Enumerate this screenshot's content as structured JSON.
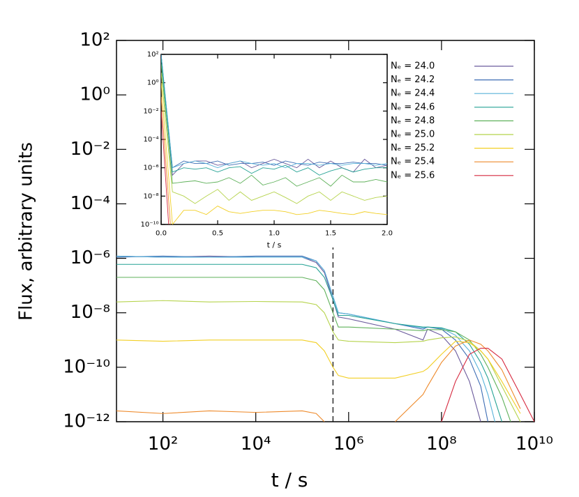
{
  "chart_data": [
    {
      "type": "line",
      "xlabel": "t / s",
      "ylabel": "Flux, arbitrary units",
      "xscale": "log",
      "yscale": "log",
      "legend": "upper-right",
      "xlim": [
        10,
        10000000000
      ],
      "ylim": [
        1e-12,
        100
      ],
      "xticks": [
        {
          "value": 100,
          "label": "10²"
        },
        {
          "value": 10000,
          "label": "10⁴"
        },
        {
          "value": 1000000,
          "label": "10⁶"
        },
        {
          "value": 100000000,
          "label": "10⁸"
        },
        {
          "value": 10000000000,
          "label": "10¹⁰"
        }
      ],
      "yticks": [
        {
          "value": 100,
          "label": "10²"
        },
        {
          "value": 1,
          "label": "10⁰"
        },
        {
          "value": 0.01,
          "label": "10⁻²"
        },
        {
          "value": 0.0001,
          "label": "10⁻⁴"
        },
        {
          "value": 1e-06,
          "label": "10⁻⁶"
        },
        {
          "value": 1e-08,
          "label": "10⁻⁸"
        },
        {
          "value": 1e-10,
          "label": "10⁻¹⁰"
        },
        {
          "value": 1e-12,
          "label": "10⁻¹²"
        }
      ],
      "marker_x": 460000,
      "x": [
        10,
        100,
        1000,
        10000,
        100000,
        200000,
        300000,
        460000,
        600000,
        1000000,
        10000000,
        40000000,
        50000000,
        100000000,
        200000000,
        400000000,
        700000000,
        1000000000,
        2000000000,
        5000000000,
        10000000000
      ],
      "series": [
        {
          "name": "Nₑ = 24.0",
          "color": "#6a5a9c",
          "values": [
            1.2e-06,
            1.1e-06,
            1.2e-06,
            1.1e-06,
            1.1e-06,
            7e-07,
            3e-07,
            3e-08,
            7e-09,
            6e-09,
            2.5e-09,
            1e-09,
            2.5e-09,
            1.5e-09,
            4e-10,
            3e-11,
            1e-12,
            null,
            null,
            null,
            null
          ]
        },
        {
          "name": "Nₑ = 24.2",
          "color": "#3d6db4",
          "values": [
            1.1e-06,
            1.2e-06,
            1.1e-06,
            1.2e-06,
            1.2e-06,
            8e-07,
            3.5e-07,
            4e-08,
            1e-08,
            9e-09,
            4e-09,
            2.5e-09,
            3e-09,
            2.5e-09,
            1e-09,
            2e-10,
            2e-11,
            1e-12,
            null,
            null,
            null
          ]
        },
        {
          "name": "Nₑ = 24.4",
          "color": "#58b2d9",
          "values": [
            1.2e-06,
            1.1e-06,
            1.1e-06,
            1.1e-06,
            1.1e-06,
            8e-07,
            3.5e-07,
            4e-08,
            1e-08,
            9e-09,
            4e-09,
            2.8e-09,
            3e-09,
            2.7e-09,
            1.5e-09,
            4e-10,
            6e-11,
            1e-11,
            1e-13,
            null,
            null
          ]
        },
        {
          "name": "Nₑ = 24.6",
          "color": "#24a294",
          "values": [
            6e-07,
            6e-07,
            6e-07,
            6e-07,
            6e-07,
            4.5e-07,
            2e-07,
            3e-08,
            8e-09,
            8e-09,
            4e-09,
            3e-09,
            3e-09,
            2.8e-09,
            2e-09,
            7e-10,
            1.5e-10,
            4e-11,
            1e-12,
            null,
            null
          ]
        },
        {
          "name": "Nₑ = 24.8",
          "color": "#5fb15a",
          "values": [
            2e-07,
            2e-07,
            2e-07,
            2e-07,
            2e-07,
            1.5e-07,
            7e-08,
            1e-08,
            3e-09,
            3e-09,
            2.5e-09,
            2.2e-09,
            2.4e-09,
            2.4e-09,
            2e-09,
            1e-09,
            3e-10,
            1e-10,
            8e-12,
            1e-13,
            null
          ]
        },
        {
          "name": "Nₑ = 25.0",
          "color": "#b5d34b",
          "values": [
            2.5e-08,
            2.8e-08,
            2.5e-08,
            2.6e-08,
            2.5e-08,
            2e-08,
            1e-08,
            2e-09,
            1e-09,
            9e-10,
            8e-10,
            9e-10,
            1e-09,
            1.2e-09,
            1.3e-09,
            9e-10,
            4e-10,
            2e-10,
            2e-11,
            1e-12,
            null
          ]
        },
        {
          "name": "Nₑ = 25.2",
          "color": "#f2cf24",
          "values": [
            1e-09,
            9e-10,
            1e-09,
            1e-09,
            1e-09,
            8e-10,
            4e-10,
            1e-10,
            5e-11,
            4e-11,
            4e-11,
            7e-11,
            9e-11,
            3e-10,
            9e-10,
            8e-10,
            4e-10,
            2e-10,
            3e-11,
            2e-12,
            null
          ]
        },
        {
          "name": "Nₑ = 25.4",
          "color": "#ee8a2b",
          "values": [
            2.5e-12,
            2e-12,
            2.5e-12,
            2.2e-12,
            2.5e-12,
            2e-12,
            1e-12,
            null,
            null,
            null,
            1e-12,
            1e-11,
            2e-11,
            1.5e-10,
            6e-10,
            1e-09,
            7e-10,
            4e-10,
            8e-11,
            3e-12,
            null
          ]
        },
        {
          "name": "Nₑ = 25.6",
          "color": "#d6283e",
          "values": [
            null,
            null,
            null,
            null,
            null,
            null,
            null,
            null,
            null,
            null,
            null,
            null,
            null,
            1e-12,
            3e-11,
            3e-10,
            5e-10,
            5e-10,
            2e-10,
            1e-11,
            1e-12
          ]
        }
      ]
    },
    {
      "type": "line",
      "xlabel": "t / s",
      "xscale": "linear",
      "yscale": "log",
      "xlim": [
        0,
        2
      ],
      "ylim": [
        1e-10,
        100
      ],
      "xticks": [
        {
          "value": 0,
          "label": "0.0"
        },
        0.5,
        {
          "value": 1,
          "label": "1.0"
        },
        1.5,
        {
          "value": 2,
          "label": "2.0"
        }
      ],
      "yticks": [
        {
          "value": 100,
          "label": "10²"
        },
        {
          "value": 1,
          "label": "10⁰"
        },
        {
          "value": 0.01,
          "label": "10⁻²"
        },
        {
          "value": 0.0001,
          "label": "10⁻⁴"
        },
        {
          "value": 1e-06,
          "label": "10⁻⁶"
        },
        {
          "value": 1e-08,
          "label": "10⁻⁸"
        },
        {
          "value": 1e-10,
          "label": "10⁻¹⁰"
        }
      ],
      "x": [
        0,
        0.1,
        0.2,
        0.3,
        0.4,
        0.5,
        0.6,
        0.7,
        0.8,
        0.9,
        1,
        1.1,
        1.2,
        1.3,
        1.4,
        1.5,
        1.6,
        1.7,
        1.8,
        1.9,
        2
      ],
      "series": [
        {
          "color": "#6a5a9c",
          "values": [
            100,
            3e-07,
            2e-06,
            3e-06,
            3e-06,
            1.5e-06,
            2e-06,
            3e-06,
            1e-06,
            2e-06,
            4e-06,
            2e-06,
            1e-06,
            4e-06,
            1e-06,
            3e-06,
            1e-06,
            5e-07,
            4e-06,
            1e-06,
            1.5e-06
          ]
        },
        {
          "color": "#3d6db4",
          "values": [
            100,
            1e-06,
            3e-06,
            2e-06,
            2e-06,
            3e-06,
            1.5e-06,
            2e-06,
            2e-06,
            2.5e-06,
            1.5e-06,
            3e-06,
            2e-06,
            1.5e-06,
            2.5e-06,
            2e-06,
            2e-06,
            2.5e-06,
            2e-06,
            2e-06,
            1.5e-06
          ]
        },
        {
          "color": "#58b2d9",
          "values": [
            100,
            1e-06,
            2e-06,
            3e-06,
            2e-06,
            1e-06,
            2e-06,
            3e-06,
            2e-06,
            1.5e-06,
            2e-06,
            1e-06,
            2e-06,
            2e-06,
            1.5e-06,
            2e-06,
            1.5e-06,
            2e-06,
            2e-06,
            1.5e-06,
            2e-06
          ]
        },
        {
          "color": "#24a294",
          "values": [
            50,
            5e-07,
            1e-06,
            8e-07,
            1e-06,
            5e-07,
            1e-06,
            1.2e-06,
            4e-07,
            1e-06,
            8e-07,
            1.5e-06,
            5e-07,
            1e-06,
            3e-07,
            6e-07,
            1e-06,
            5e-07,
            8e-07,
            1e-06,
            1e-06
          ]
        },
        {
          "color": "#5fb15a",
          "values": [
            20,
            8e-08,
            1e-07,
            1.2e-07,
            8e-08,
            1e-07,
            2e-07,
            8e-08,
            3e-07,
            6e-08,
            1e-07,
            2e-07,
            5e-08,
            1e-07,
            2e-07,
            5e-08,
            3e-07,
            1e-07,
            1e-07,
            1.5e-07,
            1e-07
          ]
        },
        {
          "color": "#b5d34b",
          "values": [
            5,
            2e-08,
            1e-08,
            3e-09,
            1e-08,
            3e-08,
            5e-09,
            2e-08,
            5e-09,
            1e-08,
            2e-08,
            8e-09,
            3e-09,
            1e-08,
            2e-08,
            5e-09,
            2e-08,
            1e-08,
            5e-09,
            8e-09,
            1e-08
          ]
        },
        {
          "color": "#f2cf24",
          "values": [
            1,
            1e-10,
            1e-09,
            1e-09,
            5e-10,
            2e-09,
            8e-10,
            6e-10,
            8e-10,
            1e-09,
            1e-09,
            8e-10,
            5e-10,
            6e-10,
            1e-09,
            8e-10,
            6e-10,
            5e-10,
            8e-10,
            6e-10,
            5e-10
          ]
        },
        {
          "color": "#ee8a2b",
          "values": [
            0.1,
            1e-12,
            null,
            null,
            null,
            null,
            null,
            null,
            null,
            null,
            null,
            null,
            null,
            null,
            null,
            null,
            null,
            null,
            null,
            null,
            null
          ]
        },
        {
          "color": "#d6283e",
          "values": [
            0.01,
            1e-14,
            null,
            null,
            null,
            null,
            null,
            null,
            null,
            null,
            null,
            null,
            null,
            null,
            null,
            null,
            null,
            null,
            null,
            null,
            null
          ]
        }
      ]
    }
  ]
}
